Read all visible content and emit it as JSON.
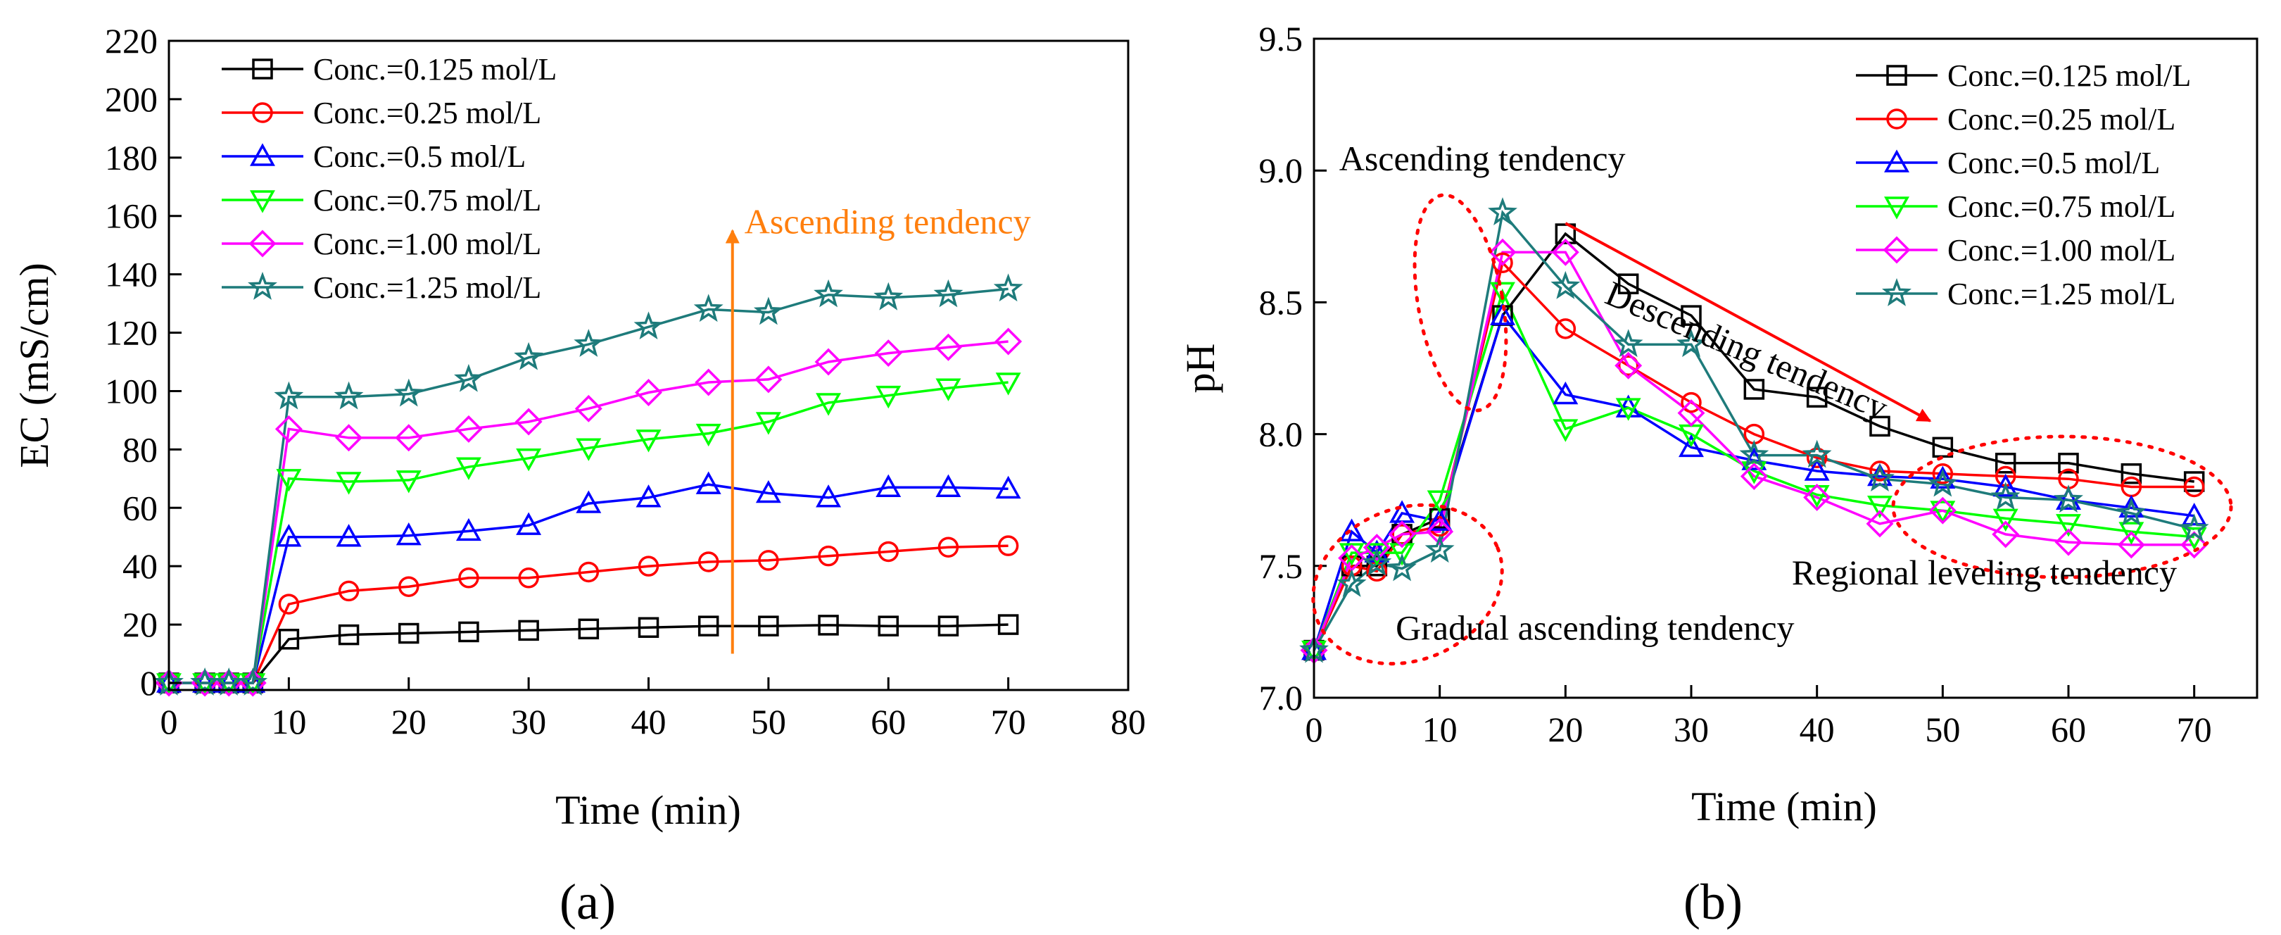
{
  "chart_data": [
    {
      "type": "line",
      "panel_label": "(a)",
      "xlabel": "Time (min)",
      "ylabel": "EC (mS/cm)",
      "xlim": [
        0,
        80
      ],
      "ylim": [
        0,
        220
      ],
      "xticks": [
        0,
        10,
        20,
        30,
        40,
        50,
        60,
        70,
        80
      ],
      "yticks": [
        0,
        20,
        40,
        60,
        80,
        100,
        120,
        140,
        160,
        180,
        200,
        220
      ],
      "legend_position": "top-left",
      "x": [
        0,
        3,
        5,
        7,
        10,
        15,
        20,
        25,
        30,
        35,
        40,
        45,
        50,
        55,
        60,
        65,
        70
      ],
      "series": [
        {
          "name": "Conc.=0.125 mol/L",
          "color": "#000000",
          "marker": "square",
          "values": [
            0,
            0,
            0,
            0,
            15,
            16.5,
            17,
            17.5,
            18,
            18.5,
            19,
            19.5,
            19.5,
            19.8,
            19.5,
            19.5,
            20
          ]
        },
        {
          "name": "Conc.=0.25 mol/L",
          "color": "#ff0000",
          "marker": "circle",
          "values": [
            0,
            0,
            0,
            0,
            27,
            31.5,
            33,
            36,
            36,
            38,
            40,
            41.5,
            42,
            43.5,
            45,
            46.5,
            47
          ]
        },
        {
          "name": "Conc.=0.5 mol/L",
          "color": "#0000ff",
          "marker": "triangle-up",
          "values": [
            0,
            0,
            0,
            0,
            50,
            50,
            50.5,
            52,
            54,
            61.5,
            63.5,
            68,
            65,
            63.5,
            67,
            67,
            66.5
          ]
        },
        {
          "name": "Conc.=0.75 mol/L",
          "color": "#00ff00",
          "marker": "triangle-down",
          "values": [
            0,
            0,
            0,
            0,
            70,
            69,
            69.5,
            74,
            77,
            80.5,
            83.5,
            85.5,
            89.5,
            96,
            98.5,
            101,
            103
          ]
        },
        {
          "name": "Conc.=1.00 mol/L",
          "color": "#ff00ff",
          "marker": "diamond",
          "values": [
            0,
            0,
            0,
            0,
            87,
            84,
            84,
            87,
            89.5,
            94,
            99.5,
            103,
            104,
            110,
            113,
            115,
            117
          ]
        },
        {
          "name": "Conc.=1.25 mol/L",
          "color": "#1e7b7b",
          "marker": "star",
          "values": [
            0,
            0,
            0,
            0,
            98,
            98,
            99,
            104,
            111.5,
            116,
            122,
            128,
            127,
            133,
            132,
            133,
            135
          ]
        }
      ],
      "annotations": [
        {
          "text": "Ascending tendency",
          "color": "#ff7f0e",
          "x": 48,
          "y": 154,
          "arrow_from": [
            47,
            10
          ],
          "arrow_to": [
            47,
            155
          ]
        }
      ]
    },
    {
      "type": "line",
      "panel_label": "(b)",
      "xlabel": "Time (min)",
      "ylabel": "pH",
      "xlim": [
        0,
        75
      ],
      "ylim": [
        7.0,
        9.5
      ],
      "xticks": [
        0,
        10,
        20,
        30,
        40,
        50,
        60,
        70
      ],
      "yticks": [
        7.0,
        7.5,
        8.0,
        8.5,
        9.0,
        9.5
      ],
      "legend_position": "top-right",
      "x": [
        0,
        3,
        5,
        7,
        10,
        15,
        20,
        25,
        30,
        35,
        40,
        45,
        50,
        55,
        60,
        65,
        70
      ],
      "series": [
        {
          "name": "Conc.=0.125 mol/L",
          "color": "#000000",
          "marker": "square",
          "values": [
            7.18,
            7.5,
            7.5,
            7.62,
            7.68,
            8.45,
            8.76,
            8.57,
            8.45,
            8.17,
            8.14,
            8.03,
            7.95,
            7.89,
            7.89,
            7.85,
            7.82
          ]
        },
        {
          "name": "Conc.=0.25 mol/L",
          "color": "#ff0000",
          "marker": "circle",
          "values": [
            7.18,
            7.5,
            7.48,
            7.62,
            7.65,
            8.65,
            8.4,
            8.26,
            8.12,
            8.0,
            7.91,
            7.86,
            7.85,
            7.84,
            7.83,
            7.8,
            7.8
          ]
        },
        {
          "name": "Conc.=0.5 mol/L",
          "color": "#0000ff",
          "marker": "triangle-up",
          "values": [
            7.18,
            7.63,
            7.55,
            7.7,
            7.67,
            8.45,
            8.15,
            8.1,
            7.95,
            7.9,
            7.86,
            7.84,
            7.83,
            7.8,
            7.75,
            7.72,
            7.69
          ]
        },
        {
          "name": "Conc.=0.75 mol/L",
          "color": "#00ff00",
          "marker": "triangle-down",
          "values": [
            7.18,
            7.55,
            7.55,
            7.55,
            7.75,
            8.54,
            8.02,
            8.1,
            8.0,
            7.86,
            7.77,
            7.73,
            7.71,
            7.68,
            7.66,
            7.63,
            7.61
          ]
        },
        {
          "name": "Conc.=1.00 mol/L",
          "color": "#ff00ff",
          "marker": "diamond",
          "values": [
            7.18,
            7.53,
            7.57,
            7.62,
            7.63,
            8.69,
            8.69,
            8.26,
            8.08,
            7.84,
            7.76,
            7.66,
            7.71,
            7.62,
            7.59,
            7.58,
            7.58
          ]
        },
        {
          "name": "Conc.=1.25 mol/L",
          "color": "#1e7b7b",
          "marker": "star",
          "values": [
            7.18,
            7.43,
            7.51,
            7.49,
            7.56,
            8.84,
            8.56,
            8.34,
            8.34,
            7.92,
            7.92,
            7.83,
            7.81,
            7.76,
            7.75,
            7.7,
            7.64
          ]
        }
      ],
      "annotations": [
        {
          "text": "Ascending tendency",
          "x": 2,
          "y": 9.0
        },
        {
          "text": "Descending tendency",
          "x": 23,
          "y": 8.5,
          "rotation_deg": 23
        },
        {
          "text": "Gradual ascending tendency",
          "x": 6.5,
          "y": 7.22
        },
        {
          "text": "Regional leveling tendency",
          "x": 38,
          "y": 7.43
        },
        {
          "arrow_from": [
            20,
            8.8
          ],
          "arrow_to": [
            49,
            8.05
          ],
          "color": "#ff0000"
        }
      ]
    }
  ]
}
